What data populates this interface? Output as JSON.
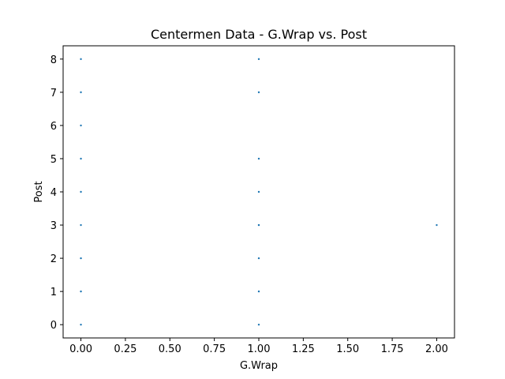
{
  "chart_data": {
    "type": "scatter",
    "title": "Centermen Data - G.Wrap vs. Post",
    "xlabel": "G.Wrap",
    "ylabel": "Post",
    "xlim": [
      -0.1,
      2.1
    ],
    "ylim": [
      -0.4,
      8.4
    ],
    "xticks": [
      0.0,
      0.25,
      0.5,
      0.75,
      1.0,
      1.25,
      1.5,
      1.75,
      2.0
    ],
    "xtick_labels": [
      "0.00",
      "0.25",
      "0.50",
      "0.75",
      "1.00",
      "1.25",
      "1.50",
      "1.75",
      "2.00"
    ],
    "yticks": [
      0,
      1,
      2,
      3,
      4,
      5,
      6,
      7,
      8
    ],
    "ytick_labels": [
      "0",
      "1",
      "2",
      "3",
      "4",
      "5",
      "6",
      "7",
      "8"
    ],
    "grid": false,
    "legend": "none",
    "marker_color": "#1f77b4",
    "series": [
      {
        "x": [
          0,
          0,
          0,
          0,
          0,
          0,
          0,
          0,
          0,
          1,
          1,
          1,
          1,
          1,
          1,
          1,
          1,
          1,
          2
        ],
        "y": [
          0,
          1,
          2,
          3,
          4,
          5,
          6,
          7,
          8,
          0,
          1,
          2,
          3,
          4,
          5,
          7,
          8,
          3,
          3
        ]
      }
    ]
  }
}
